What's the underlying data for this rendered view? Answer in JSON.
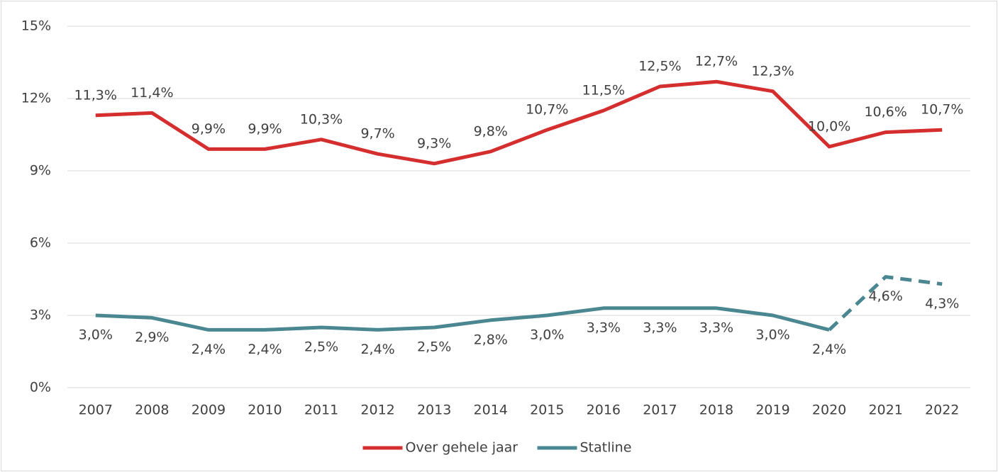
{
  "chart_data": {
    "type": "line",
    "categories": [
      "2007",
      "2008",
      "2009",
      "2010",
      "2011",
      "2012",
      "2013",
      "2014",
      "2015",
      "2016",
      "2017",
      "2018",
      "2019",
      "2020",
      "2021",
      "2022"
    ],
    "series": [
      {
        "name": "Over gehele jaar",
        "color": "#d42e2e",
        "values": [
          11.3,
          11.4,
          9.9,
          9.9,
          10.3,
          9.7,
          9.3,
          9.8,
          10.7,
          11.5,
          12.5,
          12.7,
          12.3,
          10.0,
          10.6,
          10.7
        ],
        "value_labels": [
          "11,3%",
          "11,4%",
          "9,9%",
          "9,9%",
          "10,3%",
          "9,7%",
          "9,3%",
          "9,8%",
          "10,7%",
          "11,5%",
          "12,5%",
          "12,7%",
          "12,3%",
          "10,0%",
          "10,6%",
          "10,7%"
        ]
      },
      {
        "name": "Statline",
        "color": "#4a8791",
        "dashed_from": "2020",
        "values": [
          3.0,
          2.9,
          2.4,
          2.4,
          2.5,
          2.4,
          2.5,
          2.8,
          3.0,
          3.3,
          3.3,
          3.3,
          3.0,
          2.4,
          4.6,
          4.3
        ],
        "value_labels": [
          "3,0%",
          "2,9%",
          "2,4%",
          "2,4%",
          "2,5%",
          "2,4%",
          "2,5%",
          "2,8%",
          "3,0%",
          "3,3%",
          "3,3%",
          "3,3%",
          "3,0%",
          "2,4%",
          "4,6%",
          "4,3%"
        ]
      }
    ],
    "ylim": [
      0,
      15
    ],
    "yticks": [
      {
        "value": 0,
        "label": "0%"
      },
      {
        "value": 3,
        "label": "3%"
      },
      {
        "value": 6,
        "label": "6%"
      },
      {
        "value": 9,
        "label": "9%"
      },
      {
        "value": 12,
        "label": "12%"
      },
      {
        "value": 15,
        "label": "15%"
      }
    ],
    "grid": true,
    "legend": "bottom"
  }
}
